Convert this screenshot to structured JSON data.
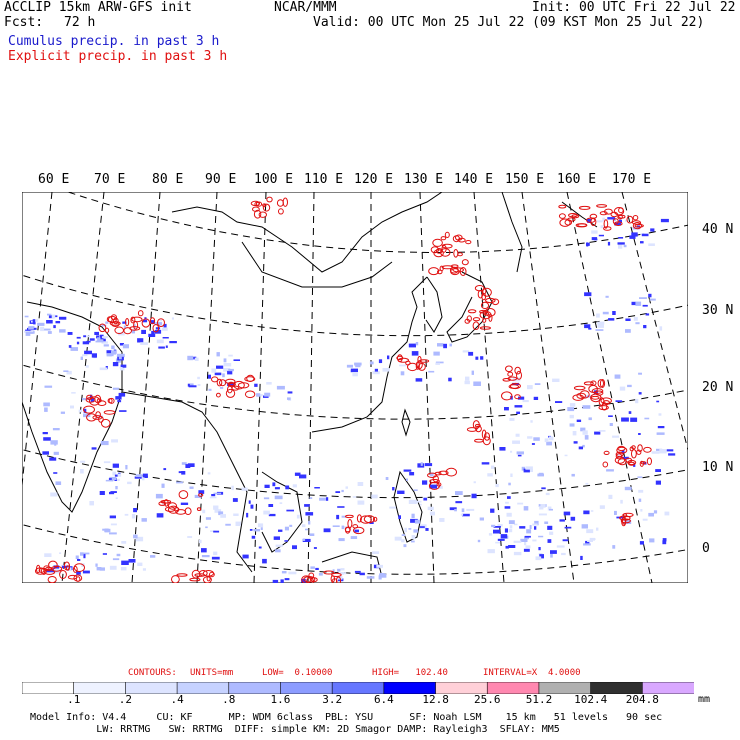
{
  "header": {
    "title_line1": "ACCLIP 15km ARW-GFS init",
    "fcst_label": "Fcst:",
    "fcst_value": "72 h",
    "center": "NCAR/MMM",
    "init": "Init: 00 UTC Fri 22 Jul 22",
    "valid": "Valid: 00 UTC Mon 25 Jul 22 (09 KST Mon 25 Jul 22)",
    "legend_cumulus": "Cumulus precip. in past 3 h",
    "legend_explicit": "Explicit precip. in past 3 h"
  },
  "map": {
    "lon_labels": [
      "60 E",
      "70 E",
      "80 E",
      "90 E",
      "100 E",
      "110 E",
      "120 E",
      "130 E",
      "140 E",
      "150 E",
      "160 E",
      "170 E"
    ],
    "lat_labels": [
      "40 N",
      "30 N",
      "20 N",
      "10 N",
      "0"
    ],
    "colors": {
      "cumulus": "#3333ff",
      "explicit": "#e01010",
      "coast": "#000000",
      "grid": "#000000"
    }
  },
  "contours": {
    "label": "CONTOURS:",
    "units": "UNITS=mm",
    "low": "LOW=  0.10000",
    "high": "HIGH=   102.40",
    "interval": "INTERVAL=X  4.0000"
  },
  "colorbar": {
    "ticks": [
      ".1",
      ".2",
      ".4",
      ".8",
      "1.6",
      "3.2",
      "6.4",
      "12.8",
      "25.6",
      "51.2",
      "102.4",
      "204.8"
    ],
    "unit": "mm",
    "colors": [
      "#ffffff",
      "#eef2ff",
      "#dde4ff",
      "#c6d2ff",
      "#aebaff",
      "#8c9cff",
      "#6677ff",
      "#0000ff",
      "#ffd0d8",
      "#ff88b0",
      "#b0b0b0",
      "#303030",
      "#d9a8ff"
    ]
  },
  "footer": {
    "line1": "Model Info: V4.4     CU: KF      MP: WDM 6class  PBL: YSU      SF: Noah LSM    15 km   51 levels   90 sec",
    "line2": "           LW: RRTMG   SW: RRTMG  DIFF: simple KM: 2D Smagor DAMP: Rayleigh3  SFLAY: MM5"
  }
}
